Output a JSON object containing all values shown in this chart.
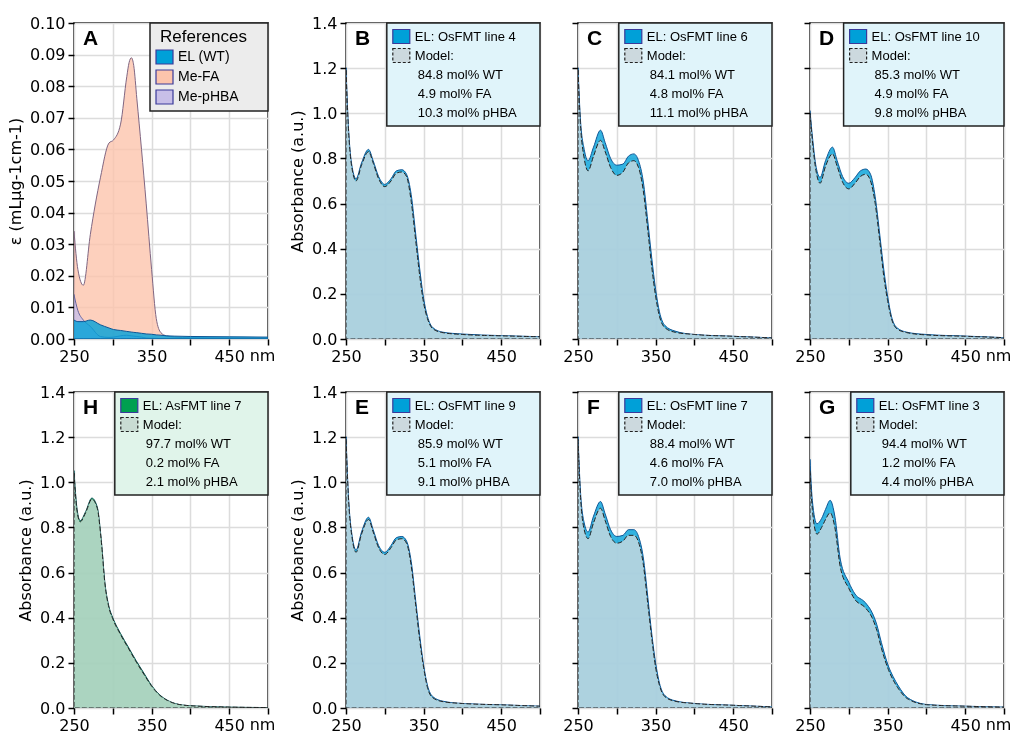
{
  "chart_data": [
    {
      "type": "area",
      "title": "A",
      "ylabel": "ε (mLµg-1cm-1)",
      "xlabel": "nm",
      "legend_title": "References",
      "legend": "top right",
      "grid": true,
      "x": [
        250,
        255,
        262,
        271,
        284,
        295,
        301,
        310,
        318,
        321,
        324,
        327,
        331,
        337,
        343,
        350,
        356,
        362,
        369,
        380,
        400,
        450,
        500
      ],
      "xlim": [
        250,
        500
      ],
      "xticks": [
        250,
        {
          "value": 300,
          "label": null
        },
        350,
        {
          "value": 400,
          "label": null
        },
        450,
        {
          "value": 500,
          "label": null
        }
      ],
      "ylim": [
        0,
        0.1
      ],
      "yticks": [
        {
          "value": 0,
          "label": "0.00"
        },
        0.01,
        0.02,
        0.03,
        0.04,
        0.05,
        0.06,
        0.07,
        0.08,
        0.09,
        {
          "value": 0.1,
          "label": "0.10"
        }
      ],
      "series": [
        {
          "name": "EL (WT)",
          "color": "#00a0d8",
          "values": [
            0.006,
            0.0055,
            0.0055,
            0.006,
            0.0045,
            0.0035,
            0.003,
            0.0027,
            0.0024,
            0.0023,
            0.0022,
            0.0021,
            0.002,
            0.0018,
            0.0016,
            0.0015,
            0.0013,
            0.0012,
            0.001,
            0.0009,
            0.0008,
            0.0007,
            0.0006
          ]
        },
        {
          "name": "Me-FA",
          "color": "#fcc4ac",
          "values": [
            0.034,
            0.022,
            0.017,
            0.033,
            0.051,
            0.062,
            0.063,
            0.068,
            0.083,
            0.0875,
            0.089,
            0.0865,
            0.076,
            0.06,
            0.043,
            0.022,
            0.0065,
            0.002,
            0.001,
            0.0006,
            0.0004,
            0.0003,
            0.0002
          ]
        },
        {
          "name": "Me-pHBA",
          "color": "#c8bfe8",
          "values": [
            0.014,
            0.009,
            0.006,
            0.004,
            0.0008,
            0.0005,
            0.0006,
            0.001,
            0.0012,
            0.0011,
            0.001,
            0.0009,
            0.0008,
            0.0006,
            0.0003,
            0.0002,
            0.0002,
            0.0001,
            0.0001,
            0.0001,
            0.0001,
            0.0001,
            0.0001
          ]
        }
      ]
    },
    {
      "type": "area",
      "title": "B",
      "ylabel": "Absorbance (a.u.)",
      "legend": "top right",
      "grid": true,
      "x": [
        250,
        253,
        258,
        263,
        270,
        279,
        285,
        292,
        300,
        308,
        315,
        322,
        328,
        334,
        340,
        345,
        350,
        355,
        362,
        375,
        400,
        450,
        500
      ],
      "xlim": [
        250,
        500
      ],
      "xticks": [
        250,
        {
          "value": 300,
          "label": null
        },
        350,
        {
          "value": 400,
          "label": null
        },
        450,
        {
          "value": 500,
          "label": null
        }
      ],
      "ylim": [
        0,
        1.4
      ],
      "yticks": [
        {
          "value": 0,
          "label": "0.0"
        },
        0.2,
        0.4,
        0.6,
        0.8,
        {
          "value": 1,
          "label": "1.0"
        },
        1.2,
        1.4
      ],
      "series": [
        {
          "name": "EL: OsFMT line 4",
          "color": "#00a0d8",
          "line_style": "solid",
          "values": [
            1.2,
            0.95,
            0.76,
            0.71,
            0.78,
            0.84,
            0.79,
            0.72,
            0.685,
            0.71,
            0.745,
            0.75,
            0.73,
            0.64,
            0.46,
            0.31,
            0.18,
            0.1,
            0.05,
            0.03,
            0.022,
            0.015,
            0.01
          ]
        },
        {
          "name": "Model:",
          "color": "#ccd9de",
          "line_style": "dashed",
          "values": [
            1.19,
            0.94,
            0.75,
            0.7,
            0.77,
            0.83,
            0.78,
            0.71,
            0.675,
            0.7,
            0.735,
            0.74,
            0.72,
            0.61,
            0.43,
            0.28,
            0.16,
            0.09,
            0.045,
            0.028,
            0.02,
            0.014,
            0.01
          ]
        }
      ],
      "annotations": [
        "84.8 mol% WT",
        "4.9 mol% FA",
        "10.3 mol% pHBA"
      ]
    },
    {
      "type": "area",
      "title": "C",
      "legend": "top right",
      "grid": true,
      "tick_labels": "x",
      "x": [
        250,
        253,
        258,
        263,
        270,
        279,
        285,
        292,
        300,
        308,
        315,
        322,
        328,
        334,
        340,
        345,
        350,
        355,
        362,
        375,
        400,
        450,
        500
      ],
      "xlim": [
        250,
        500
      ],
      "xticks": [
        250,
        {
          "value": 300,
          "label": null
        },
        350,
        {
          "value": 400,
          "label": null
        },
        450,
        {
          "value": 500,
          "label": null
        }
      ],
      "ylim": [
        0,
        1.4
      ],
      "yticks": [
        {
          "value": 0,
          "label": null
        },
        {
          "value": 0.2,
          "label": null
        },
        {
          "value": 0.4,
          "label": null
        },
        {
          "value": 0.6,
          "label": null
        },
        {
          "value": 0.8,
          "label": null
        },
        {
          "value": 1,
          "label": null
        },
        {
          "value": 1.2,
          "label": null
        },
        {
          "value": 1.4,
          "label": null
        }
      ],
      "series": [
        {
          "name": "EL: OsFMT line 6",
          "color": "#00a0d8",
          "line_style": "solid",
          "values": [
            1.2,
            0.98,
            0.84,
            0.79,
            0.85,
            0.925,
            0.87,
            0.8,
            0.77,
            0.775,
            0.81,
            0.82,
            0.79,
            0.7,
            0.52,
            0.36,
            0.22,
            0.12,
            0.06,
            0.035,
            0.02,
            0.012,
            0.005
          ]
        },
        {
          "name": "Model:",
          "color": "#ccd9de",
          "line_style": "dashed",
          "values": [
            1.19,
            0.96,
            0.8,
            0.745,
            0.81,
            0.88,
            0.83,
            0.76,
            0.725,
            0.74,
            0.78,
            0.79,
            0.76,
            0.66,
            0.48,
            0.32,
            0.19,
            0.1,
            0.05,
            0.03,
            0.02,
            0.012,
            0.005
          ]
        }
      ],
      "annotations": [
        "84.1 mol% WT",
        "4.8 mol% FA",
        "11.1 mol% pHBA"
      ]
    },
    {
      "type": "area",
      "title": "D",
      "xlabel": "nm",
      "legend": "top right",
      "grid": true,
      "tick_labels": "x",
      "x": [
        250,
        253,
        258,
        263,
        270,
        279,
        285,
        292,
        300,
        308,
        315,
        322,
        328,
        334,
        340,
        345,
        350,
        355,
        362,
        375,
        400,
        450,
        500
      ],
      "xlim": [
        250,
        500
      ],
      "xticks": [
        250,
        {
          "value": 300,
          "label": null
        },
        350,
        {
          "value": 400,
          "label": null
        },
        450,
        {
          "value": 500,
          "label": null
        }
      ],
      "ylim": [
        0,
        1.4
      ],
      "yticks": [
        {
          "value": 0,
          "label": null
        },
        {
          "value": 0.2,
          "label": null
        },
        {
          "value": 0.4,
          "label": null
        },
        {
          "value": 0.6,
          "label": null
        },
        {
          "value": 0.8,
          "label": null
        },
        {
          "value": 1,
          "label": null
        },
        {
          "value": 1.2,
          "label": null
        },
        {
          "value": 1.4,
          "label": null
        }
      ],
      "series": [
        {
          "name": "EL: OsFMT line 10",
          "color": "#00a0d8",
          "line_style": "solid",
          "values": [
            1.01,
            0.9,
            0.76,
            0.716,
            0.79,
            0.85,
            0.79,
            0.72,
            0.69,
            0.715,
            0.745,
            0.753,
            0.73,
            0.63,
            0.46,
            0.31,
            0.19,
            0.1,
            0.05,
            0.03,
            0.02,
            0.013,
            0.006
          ]
        },
        {
          "name": "Model:",
          "color": "#ccd9de",
          "line_style": "dashed",
          "values": [
            1,
            0.88,
            0.74,
            0.69,
            0.765,
            0.82,
            0.765,
            0.695,
            0.665,
            0.69,
            0.72,
            0.73,
            0.7,
            0.6,
            0.43,
            0.28,
            0.17,
            0.09,
            0.045,
            0.028,
            0.018,
            0.012,
            0.006
          ]
        }
      ],
      "annotations": [
        "85.3 mol% WT",
        "4.9 mol% FA",
        "9.8 mol% pHBA"
      ]
    },
    {
      "type": "area",
      "title": "H",
      "ylabel": "Absorbance (a.u.)",
      "xlabel": "nm",
      "legend": "top right",
      "grid": true,
      "x": [
        250,
        254,
        258,
        265,
        273,
        280,
        285,
        290,
        295,
        300,
        310,
        320,
        330,
        340,
        350,
        360,
        370,
        380,
        400,
        450,
        500
      ],
      "xlim": [
        250,
        500
      ],
      "xticks": [
        250,
        {
          "value": 300,
          "label": null
        },
        350,
        {
          "value": 400,
          "label": null
        },
        450,
        {
          "value": 500,
          "label": null
        }
      ],
      "ylim": [
        0,
        1.4
      ],
      "yticks": [
        {
          "value": 0,
          "label": "0.0"
        },
        0.2,
        0.4,
        0.6,
        0.8,
        {
          "value": 1,
          "label": "1.0"
        },
        1.2,
        1.4
      ],
      "series": [
        {
          "name": "EL: AsFMT line 7",
          "color": "#00a050",
          "line_style": "solid",
          "values": [
            1.05,
            0.88,
            0.83,
            0.87,
            0.93,
            0.89,
            0.75,
            0.55,
            0.45,
            0.4,
            0.33,
            0.27,
            0.21,
            0.155,
            0.1,
            0.06,
            0.035,
            0.02,
            0.01,
            0.004,
            0.002
          ]
        },
        {
          "name": "Model:",
          "color": "#c9dcd3",
          "line_style": "dashed",
          "values": [
            1.04,
            0.87,
            0.825,
            0.865,
            0.925,
            0.885,
            0.745,
            0.545,
            0.445,
            0.395,
            0.325,
            0.265,
            0.205,
            0.15,
            0.097,
            0.058,
            0.034,
            0.02,
            0.01,
            0.004,
            0.002
          ]
        }
      ],
      "annotations": [
        "97.7 mol% WT",
        "0.2 mol% FA",
        "2.1 mol% pHBA"
      ]
    },
    {
      "type": "area",
      "title": "E",
      "ylabel": "Absorbance (a.u.)",
      "legend": "top right",
      "grid": true,
      "x": [
        250,
        253,
        258,
        263,
        270,
        279,
        285,
        292,
        300,
        308,
        315,
        322,
        328,
        334,
        340,
        345,
        350,
        355,
        362,
        375,
        400,
        450,
        500
      ],
      "xlim": [
        250,
        500
      ],
      "xticks": [
        250,
        {
          "value": 300,
          "label": null
        },
        350,
        {
          "value": 400,
          "label": null
        },
        450,
        {
          "value": 500,
          "label": null
        }
      ],
      "ylim": [
        0,
        1.4
      ],
      "yticks": [
        {
          "value": 0,
          "label": "0.0"
        },
        0.2,
        0.4,
        0.6,
        0.8,
        {
          "value": 1,
          "label": "1.0"
        },
        1.2,
        1.4
      ],
      "series": [
        {
          "name": "EL: OsFMT line 9",
          "color": "#00a0d8",
          "line_style": "solid",
          "values": [
            1.2,
            0.95,
            0.76,
            0.7,
            0.78,
            0.845,
            0.79,
            0.72,
            0.69,
            0.72,
            0.755,
            0.76,
            0.74,
            0.65,
            0.47,
            0.32,
            0.19,
            0.1,
            0.05,
            0.03,
            0.02,
            0.014,
            0.008
          ]
        },
        {
          "name": "Model:",
          "color": "#ccd9de",
          "line_style": "dashed",
          "values": [
            1.19,
            0.94,
            0.75,
            0.69,
            0.77,
            0.835,
            0.78,
            0.71,
            0.68,
            0.71,
            0.745,
            0.75,
            0.73,
            0.63,
            0.45,
            0.3,
            0.18,
            0.09,
            0.045,
            0.028,
            0.02,
            0.014,
            0.008
          ]
        }
      ],
      "annotations": [
        "85.9 mol% WT",
        "5.1 mol% FA",
        "9.1 mol% pHBA"
      ]
    },
    {
      "type": "area",
      "title": "F",
      "legend": "top right",
      "grid": true,
      "tick_labels": "x",
      "x": [
        250,
        253,
        258,
        263,
        270,
        279,
        285,
        292,
        300,
        308,
        315,
        322,
        328,
        334,
        340,
        345,
        350,
        355,
        362,
        375,
        400,
        450,
        500
      ],
      "xlim": [
        250,
        500
      ],
      "xticks": [
        250,
        {
          "value": 300,
          "label": null
        },
        350,
        {
          "value": 400,
          "label": null
        },
        450,
        {
          "value": 500,
          "label": null
        }
      ],
      "ylim": [
        0,
        1.4
      ],
      "yticks": [
        {
          "value": 0,
          "label": null
        },
        {
          "value": 0.2,
          "label": null
        },
        {
          "value": 0.4,
          "label": null
        },
        {
          "value": 0.6,
          "label": null
        },
        {
          "value": 0.8,
          "label": null
        },
        {
          "value": 1,
          "label": null
        },
        {
          "value": 1.2,
          "label": null
        },
        {
          "value": 1.4,
          "label": null
        }
      ],
      "series": [
        {
          "name": "EL: OsFMT line 7",
          "color": "#00a0d8",
          "line_style": "solid",
          "values": [
            1.2,
            0.97,
            0.82,
            0.78,
            0.85,
            0.915,
            0.86,
            0.79,
            0.76,
            0.765,
            0.79,
            0.79,
            0.76,
            0.67,
            0.49,
            0.33,
            0.2,
            0.11,
            0.055,
            0.032,
            0.02,
            0.012,
            0.005
          ]
        },
        {
          "name": "Model:",
          "color": "#ccd9de",
          "line_style": "dashed",
          "values": [
            1.19,
            0.95,
            0.79,
            0.75,
            0.82,
            0.885,
            0.83,
            0.76,
            0.73,
            0.74,
            0.765,
            0.765,
            0.735,
            0.64,
            0.46,
            0.31,
            0.18,
            0.1,
            0.05,
            0.03,
            0.02,
            0.012,
            0.005
          ]
        }
      ],
      "annotations": [
        "88.4 mol% WT",
        "4.6 mol% FA",
        "7.0 mol% pHBA"
      ]
    },
    {
      "type": "area",
      "title": "G",
      "xlabel": "nm",
      "legend": "top right",
      "grid": true,
      "tick_labels": "x",
      "x": [
        250,
        253,
        259,
        265,
        270,
        276,
        282,
        289,
        300,
        308,
        321,
        330,
        336,
        342,
        351,
        357,
        364,
        376,
        402,
        450,
        500
      ],
      "xlim": [
        250,
        500
      ],
      "xticks": [
        250,
        {
          "value": 300,
          "label": null
        },
        350,
        {
          "value": 400,
          "label": null
        },
        450,
        {
          "value": 500,
          "label": null
        }
      ],
      "ylim": [
        0,
        1.4
      ],
      "yticks": [
        {
          "value": 0,
          "label": null
        },
        {
          "value": 0.2,
          "label": null
        },
        {
          "value": 0.4,
          "label": null
        },
        {
          "value": 0.6,
          "label": null
        },
        {
          "value": 0.8,
          "label": null
        },
        {
          "value": 1,
          "label": null
        },
        {
          "value": 1.2,
          "label": null
        },
        {
          "value": 1.4,
          "label": null
        }
      ],
      "series": [
        {
          "name": "EL: OsFMT line 3",
          "color": "#00a0d8",
          "line_style": "solid",
          "values": [
            1.1,
            0.92,
            0.816,
            0.84,
            0.88,
            0.92,
            0.85,
            0.66,
            0.557,
            0.505,
            0.468,
            0.423,
            0.37,
            0.29,
            0.186,
            0.14,
            0.097,
            0.045,
            0.015,
            0.008,
            0.004
          ]
        },
        {
          "name": "Model:",
          "color": "#ccd9de",
          "line_style": "dashed",
          "values": [
            1.05,
            0.88,
            0.77,
            0.8,
            0.835,
            0.865,
            0.8,
            0.625,
            0.53,
            0.48,
            0.445,
            0.4,
            0.345,
            0.265,
            0.17,
            0.125,
            0.085,
            0.04,
            0.014,
            0.008,
            0.004
          ]
        }
      ],
      "annotations": [
        "94.4 mol% WT",
        "1.2 mol% FA",
        "4.4 mol% pHBA"
      ]
    }
  ]
}
